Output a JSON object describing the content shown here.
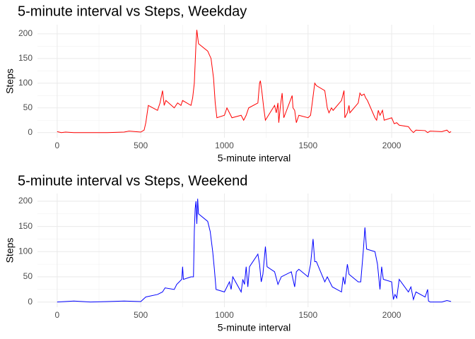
{
  "chart_data": [
    {
      "type": "line",
      "title": "5-minute interval vs Steps, Weekday",
      "x_label": "5-minute interval",
      "y_label": "Steps",
      "xlim": [
        -117.75,
        2472.75
      ],
      "ylim": [
        -10.4,
        218.4
      ],
      "xticks": [
        0,
        500,
        1000,
        1500,
        2000
      ],
      "x_minor_ticks": [
        250,
        750,
        1250,
        1750,
        2250
      ],
      "yticks": [
        0,
        50,
        100,
        150,
        200
      ],
      "y_minor_ticks": [
        25,
        75,
        125,
        175
      ],
      "grid": true,
      "x": [
        0,
        25,
        50,
        100,
        200,
        300,
        400,
        430,
        500,
        520,
        530,
        545,
        600,
        615,
        630,
        640,
        650,
        700,
        720,
        740,
        750,
        800,
        810,
        820,
        830,
        835,
        845,
        900,
        920,
        935,
        945,
        955,
        1000,
        1015,
        1030,
        1045,
        1100,
        1115,
        1130,
        1145,
        1200,
        1210,
        1215,
        1225,
        1235,
        1245,
        1300,
        1310,
        1320,
        1325,
        1335,
        1345,
        1355,
        1405,
        1410,
        1420,
        1430,
        1445,
        1500,
        1515,
        1525,
        1540,
        1550,
        1600,
        1615,
        1625,
        1640,
        1650,
        1700,
        1715,
        1720,
        1735,
        1745,
        1750,
        1800,
        1810,
        1820,
        1835,
        1845,
        1855,
        1900,
        1910,
        1920,
        1930,
        1945,
        1955,
        2000,
        2015,
        2030,
        2045,
        2100,
        2115,
        2130,
        2145,
        2200,
        2215,
        2230,
        2300,
        2330,
        2345,
        2355
      ],
      "series": [
        {
          "color": "#ff0000",
          "values": [
            2,
            0,
            1,
            0,
            0,
            0,
            1,
            3,
            1,
            5,
            20,
            55,
            45,
            60,
            85,
            55,
            65,
            50,
            60,
            55,
            65,
            55,
            70,
            100,
            180,
            208,
            180,
            165,
            150,
            110,
            60,
            30,
            35,
            50,
            40,
            30,
            35,
            25,
            35,
            50,
            60,
            100,
            105,
            80,
            50,
            25,
            55,
            40,
            60,
            20,
            55,
            80,
            30,
            75,
            50,
            45,
            20,
            35,
            30,
            35,
            60,
            100,
            95,
            85,
            50,
            40,
            50,
            45,
            65,
            85,
            30,
            40,
            55,
            40,
            60,
            80,
            75,
            78,
            70,
            65,
            30,
            25,
            45,
            35,
            45,
            25,
            30,
            18,
            20,
            15,
            12,
            5,
            0,
            5,
            4,
            0,
            3,
            2,
            5,
            0,
            2
          ]
        }
      ]
    },
    {
      "type": "line",
      "title": "5-minute interval vs Steps, Weekend",
      "x_label": "5-minute interval",
      "y_label": "Steps",
      "xlim": [
        -117.75,
        2472.75
      ],
      "ylim": [
        -10.3,
        215.3
      ],
      "xticks": [
        0,
        500,
        1000,
        1500,
        2000
      ],
      "x_minor_ticks": [
        250,
        750,
        1250,
        1750,
        2250
      ],
      "yticks": [
        0,
        50,
        100,
        150,
        200
      ],
      "y_minor_ticks": [
        25,
        75,
        125,
        175
      ],
      "grid": true,
      "x": [
        0,
        100,
        200,
        300,
        400,
        500,
        530,
        600,
        630,
        645,
        700,
        715,
        730,
        745,
        750,
        755,
        800,
        815,
        820,
        825,
        830,
        835,
        840,
        845,
        900,
        915,
        930,
        940,
        950,
        1000,
        1015,
        1030,
        1040,
        1050,
        1100,
        1110,
        1120,
        1130,
        1140,
        1150,
        1200,
        1210,
        1220,
        1230,
        1245,
        1255,
        1300,
        1320,
        1340,
        1400,
        1420,
        1430,
        1445,
        1500,
        1515,
        1530,
        1540,
        1550,
        1600,
        1615,
        1630,
        1645,
        1700,
        1710,
        1720,
        1735,
        1745,
        1800,
        1815,
        1830,
        1840,
        1850,
        1900,
        1915,
        1930,
        1940,
        1950,
        2000,
        2010,
        2020,
        2030,
        2045,
        2100,
        2115,
        2130,
        2145,
        2200,
        2215,
        2220,
        2230,
        2300,
        2330,
        2355
      ],
      "series": [
        {
          "color": "#0000ff",
          "values": [
            0,
            2,
            0,
            1,
            2,
            1,
            10,
            15,
            20,
            28,
            25,
            35,
            40,
            45,
            70,
            45,
            50,
            50,
            140,
            185,
            200,
            155,
            205,
            175,
            160,
            140,
            100,
            65,
            25,
            20,
            30,
            40,
            25,
            50,
            20,
            45,
            35,
            70,
            30,
            70,
            95,
            75,
            40,
            55,
            110,
            70,
            60,
            35,
            50,
            60,
            30,
            60,
            65,
            50,
            75,
            125,
            80,
            80,
            40,
            50,
            40,
            30,
            20,
            50,
            35,
            75,
            55,
            40,
            40,
            100,
            148,
            105,
            100,
            75,
            25,
            70,
            45,
            40,
            5,
            15,
            8,
            45,
            20,
            30,
            5,
            20,
            10,
            25,
            2,
            0,
            0,
            3,
            1
          ]
        }
      ]
    }
  ]
}
